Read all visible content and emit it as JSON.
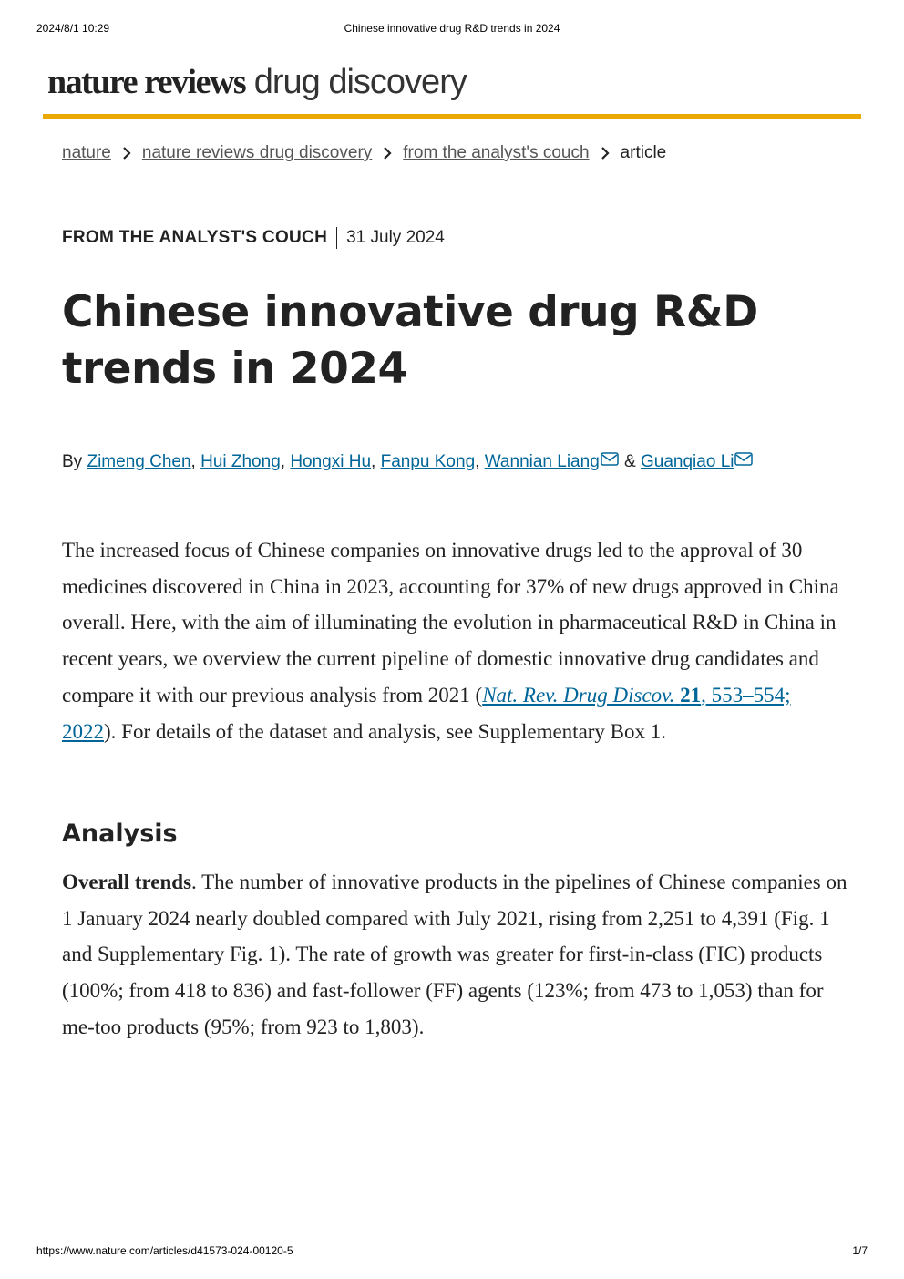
{
  "print_header": {
    "datetime": "2024/8/1 10:29",
    "title": "Chinese innovative drug R&D trends in 2024"
  },
  "masthead": {
    "brand_bold": "nature reviews",
    "brand_light": "drug discovery"
  },
  "breadcrumb": [
    "nature",
    "nature reviews drug discovery",
    "from the analyst's couch",
    "article"
  ],
  "article_type": "FROM THE ANALYST'S COUCH",
  "date": "31 July 2024",
  "title": "Chinese innovative drug R&D trends in 2024",
  "byline": {
    "prefix": "By",
    "authors": [
      "Zimeng Chen",
      "Hui Zhong",
      "Hongxi Hu",
      "Fanpu Kong",
      "Wannian Liang",
      "Guanqiao Li"
    ],
    "separator": ",",
    "conjunction": "&"
  },
  "abstract": {
    "text_before": "The increased focus of Chinese companies on innovative drugs led to the approval of 30 medicines discovered in China in 2023, accounting for 37% of new drugs approved in China overall. Here, with the aim of illuminating the evolution in pharmaceutical R&D in China in recent years, we overview the current pipeline of domestic innovative drug candidates and compare it with our previous analysis from 2021 (",
    "citation_journal": "Nat. Rev. Drug Discov.",
    "citation_volume": "21",
    "citation_pages": ", 553–554; 2022",
    "text_after": "). For details of the dataset and analysis, see Supplementary Box 1."
  },
  "section": {
    "heading": "Analysis",
    "lead": "Overall trends",
    "text": ". The number of innovative products in the pipelines of Chinese companies on 1 January 2024 nearly doubled compared with July 2021, rising from 2,251 to 4,391 (Fig. 1 and Supplementary Fig. 1). The rate of growth was greater for first-in-class (FIC) products (100%; from 418 to 836) and fast-follower (FF) agents (123%; from 473 to 1,053) than for me-too products (95%; from 923 to 1,803)."
  },
  "print_footer": {
    "url": "https://www.nature.com/articles/d41573-024-00120-5",
    "page": "1/7"
  }
}
